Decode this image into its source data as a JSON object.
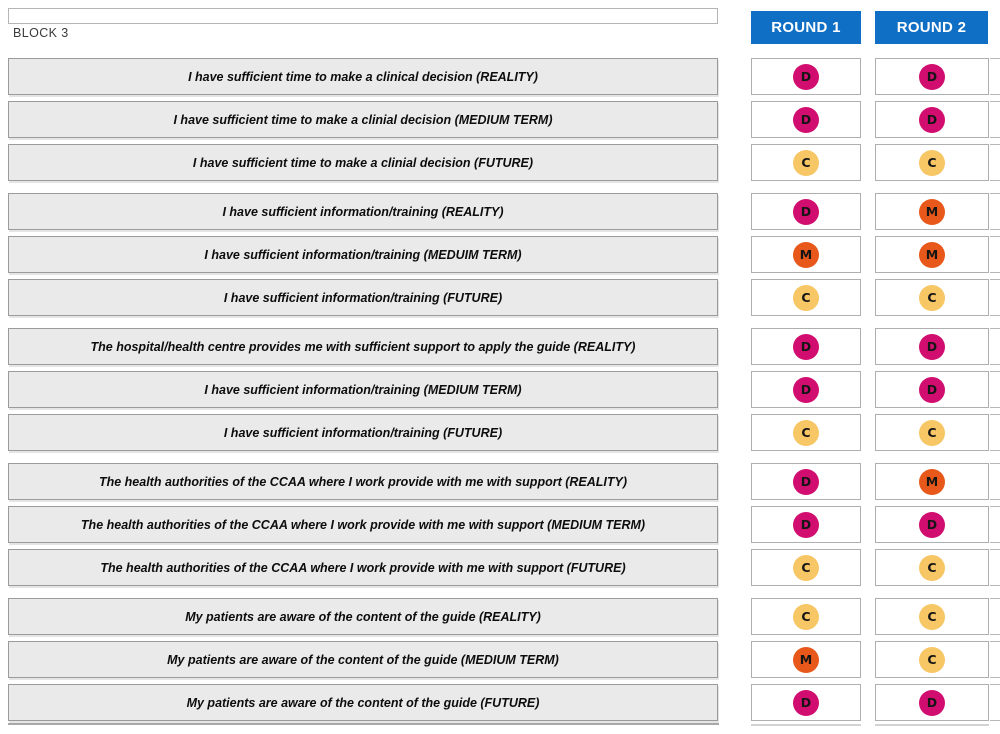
{
  "block_label": "BLOCK 3",
  "headers": {
    "round1": "ROUND 1",
    "round2": "ROUND 2"
  },
  "colors": {
    "header_bg": "#0F6FC5",
    "header_text": "#FFFFFF",
    "row_bg": "#EAEAEA",
    "row_border": "#9B9B9B",
    "cell_border": "#AFAFAF",
    "D": "#D10D6F",
    "M": "#E8581A",
    "C": "#F7C665"
  },
  "rows": [
    {
      "statement": "I have sufficient time to make a clinical decision (REALITY)",
      "round1": "D",
      "round2": "D"
    },
    {
      "statement": "I have sufficient time to make a clinial decision (MEDIUM TERM)",
      "round1": "D",
      "round2": "D"
    },
    {
      "statement": "I have sufficient time to make a clinial decision (FUTURE)",
      "round1": "C",
      "round2": "C"
    },
    {
      "statement": "I have sufficient information/training (REALITY)",
      "round1": "D",
      "round2": "M"
    },
    {
      "statement": "I have sufficient information/training (MEDUIM TERM)",
      "round1": "M",
      "round2": "M"
    },
    {
      "statement": "I have sufficient information/training (FUTURE)",
      "round1": "C",
      "round2": "C"
    },
    {
      "statement": "The hospital/health centre provides me with sufficient support to apply the guide (REALITY)",
      "round1": "D",
      "round2": "D"
    },
    {
      "statement": "I have sufficient information/training (MEDIUM TERM)",
      "round1": "D",
      "round2": "D"
    },
    {
      "statement": "I have sufficient information/training (FUTURE)",
      "round1": "C",
      "round2": "C"
    },
    {
      "statement": "The health authorities of the CCAA where I work provide with me with support (REALITY)",
      "round1": "D",
      "round2": "M"
    },
    {
      "statement": "The health authorities of the CCAA where I work provide with me with support (MEDIUM TERM)",
      "round1": "D",
      "round2": "D"
    },
    {
      "statement": "The health authorities of the CCAA where I work provide with me with support (FUTURE)",
      "round1": "C",
      "round2": "C"
    },
    {
      "statement": "My patients are aware of the content of the guide (REALITY)",
      "round1": "C",
      "round2": "C"
    },
    {
      "statement": "My patients are aware of the content of the guide (MEDIUM TERM)",
      "round1": "M",
      "round2": "C"
    },
    {
      "statement": "My patients are aware of the content of the guide (FUTURE)",
      "round1": "D",
      "round2": "D"
    }
  ],
  "chart_data": {
    "type": "table",
    "title": "BLOCK 3",
    "columns": [
      "Statement",
      "ROUND 1",
      "ROUND 2"
    ],
    "rows": [
      [
        "I have sufficient time to make a clinical decision (REALITY)",
        "D",
        "D"
      ],
      [
        "I have sufficient time to make a clinial decision (MEDIUM TERM)",
        "D",
        "D"
      ],
      [
        "I have sufficient time to make a clinial decision (FUTURE)",
        "C",
        "C"
      ],
      [
        "I have sufficient information/training (REALITY)",
        "D",
        "M"
      ],
      [
        "I have sufficient information/training (MEDUIM TERM)",
        "M",
        "M"
      ],
      [
        "I have sufficient information/training (FUTURE)",
        "C",
        "C"
      ],
      [
        "The hospital/health centre provides me with sufficient support to apply the guide (REALITY)",
        "D",
        "D"
      ],
      [
        "I have sufficient information/training (MEDIUM TERM)",
        "D",
        "D"
      ],
      [
        "I have sufficient information/training (FUTURE)",
        "C",
        "C"
      ],
      [
        "The health authorities of the CCAA where I work provide with me with support (REALITY)",
        "D",
        "M"
      ],
      [
        "The health authorities of the CCAA where I work provide with me with support (MEDIUM TERM)",
        "D",
        "D"
      ],
      [
        "The health authorities of the CCAA where I work provide with me with support (FUTURE)",
        "C",
        "C"
      ],
      [
        "My patients are aware of the content of the guide (REALITY)",
        "C",
        "C"
      ],
      [
        "My patients are aware of the content of the guide (MEDIUM TERM)",
        "M",
        "C"
      ],
      [
        "My patients are aware of the content of the guide (FUTURE)",
        "D",
        "D"
      ]
    ],
    "value_colors": {
      "D": "#D10D6F",
      "M": "#E8581A",
      "C": "#F7C665"
    },
    "layout": {
      "value_columns_header_bg": "#0F6FC5",
      "statement_rows_bg": "#EAEAEA",
      "grid": "bordered cells, grouped in blocks of 3 rows"
    }
  }
}
